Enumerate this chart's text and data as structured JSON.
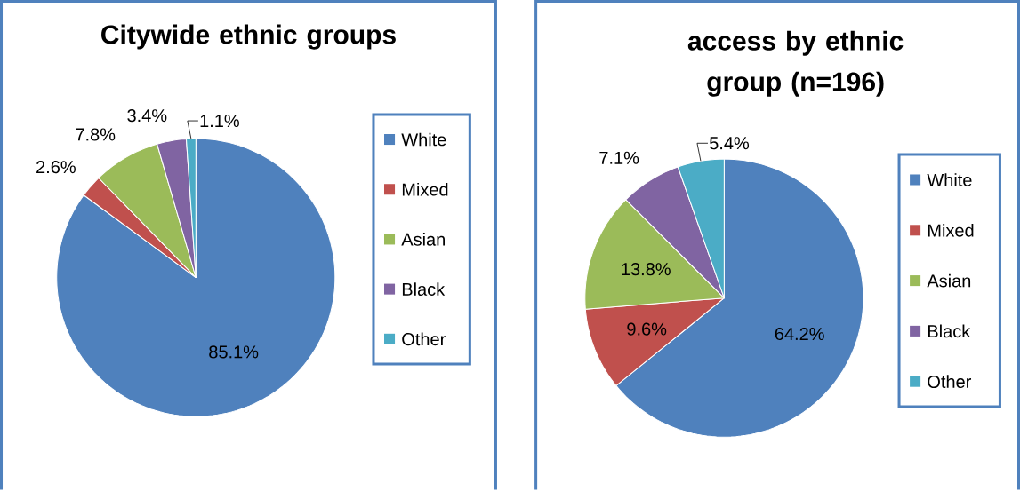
{
  "chart_data": [
    {
      "type": "pie",
      "title": "Citywide ethnic groups",
      "categories": [
        "White",
        "Mixed",
        "Asian",
        "Black",
        "Other"
      ],
      "values": [
        85.1,
        2.6,
        7.8,
        3.4,
        1.1
      ],
      "value_labels": [
        "85.1%",
        "2.6%",
        "7.8%",
        "3.4%",
        "1.1%"
      ],
      "colors": [
        "#4f81bd",
        "#c0504d",
        "#9bbb59",
        "#8064a2",
        "#4bacc6"
      ],
      "legend": "right"
    },
    {
      "type": "pie",
      "title": "access by ethnic group (n=196)",
      "categories": [
        "White",
        "Mixed",
        "Asian",
        "Black",
        "Other"
      ],
      "values": [
        64.2,
        9.6,
        13.8,
        7.1,
        5.4
      ],
      "value_labels": [
        "64.2%",
        "9.6%",
        "13.8%",
        "7.1%",
        "5.4%"
      ],
      "colors": [
        "#4f81bd",
        "#c0504d",
        "#9bbb59",
        "#8064a2",
        "#4bacc6"
      ],
      "legend": "right"
    }
  ]
}
